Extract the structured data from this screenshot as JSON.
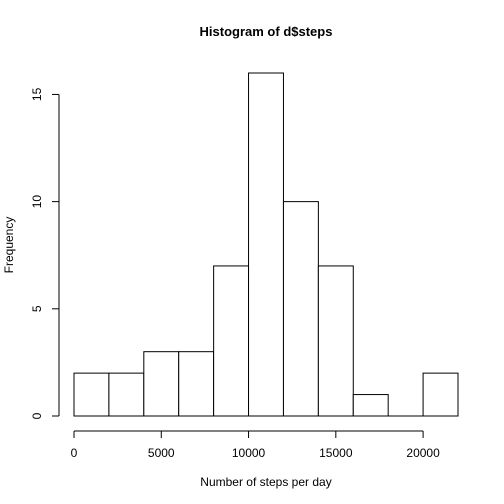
{
  "chart_data": {
    "type": "bar",
    "title": "Histogram of d$steps",
    "xlabel": "Number of steps per day",
    "ylabel": "Frequency",
    "bins": [
      {
        "start": 0,
        "end": 2000,
        "count": 2
      },
      {
        "start": 2000,
        "end": 4000,
        "count": 2
      },
      {
        "start": 4000,
        "end": 6000,
        "count": 3
      },
      {
        "start": 6000,
        "end": 8000,
        "count": 3
      },
      {
        "start": 8000,
        "end": 10000,
        "count": 7
      },
      {
        "start": 10000,
        "end": 12000,
        "count": 16
      },
      {
        "start": 12000,
        "end": 14000,
        "count": 10
      },
      {
        "start": 14000,
        "end": 16000,
        "count": 7
      },
      {
        "start": 16000,
        "end": 18000,
        "count": 1
      },
      {
        "start": 18000,
        "end": 20000,
        "count": 0
      },
      {
        "start": 20000,
        "end": 22000,
        "count": 2
      }
    ],
    "xlim": [
      0,
      22000
    ],
    "ylim": [
      0,
      16
    ],
    "xticks": [
      0,
      5000,
      10000,
      15000,
      20000
    ],
    "xtick_labels": [
      "0",
      "5000",
      "10000",
      "15000",
      "20000"
    ],
    "yticks": [
      0,
      5,
      10,
      15
    ],
    "ytick_labels": [
      "0",
      "5",
      "10",
      "15"
    ],
    "grid": false,
    "colors": {
      "bar_fill": "#ffffff",
      "bar_stroke": "#000000"
    }
  }
}
